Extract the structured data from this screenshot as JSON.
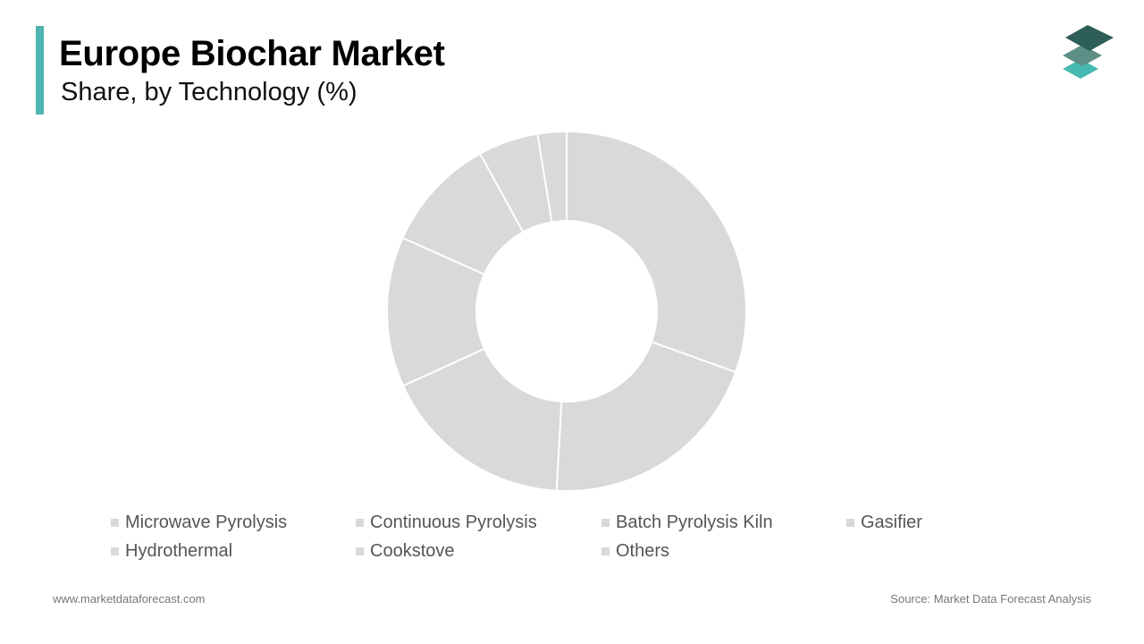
{
  "header": {
    "title": "Europe Biochar Market",
    "subtitle": "Share, by Technology (%)"
  },
  "colors": {
    "accent": "#4fb3b0",
    "slice": "#d9d9d9",
    "slice_border": "#ffffff",
    "legend_text": "#555555",
    "logo_dark": "#2e5e58",
    "logo_mid": "#5e8f86",
    "logo_light": "#47b9b3"
  },
  "chart_data": {
    "type": "pie",
    "donut": true,
    "categories": [
      "Microwave Pyrolysis",
      "Continuous Pyrolysis",
      "Batch Pyrolysis Kiln",
      "Gasifier",
      "Hydrothermal",
      "Cookstove",
      "Others"
    ],
    "values": [
      30.5,
      20.4,
      17.3,
      13.5,
      10.3,
      5.4,
      2.6
    ],
    "legend_position": "bottom"
  },
  "footer": {
    "website": "www.marketdataforecast.com",
    "source": "Source: Market Data Forecast Analysis"
  },
  "icons": {
    "logo": "stacked-layers-logo-icon"
  }
}
